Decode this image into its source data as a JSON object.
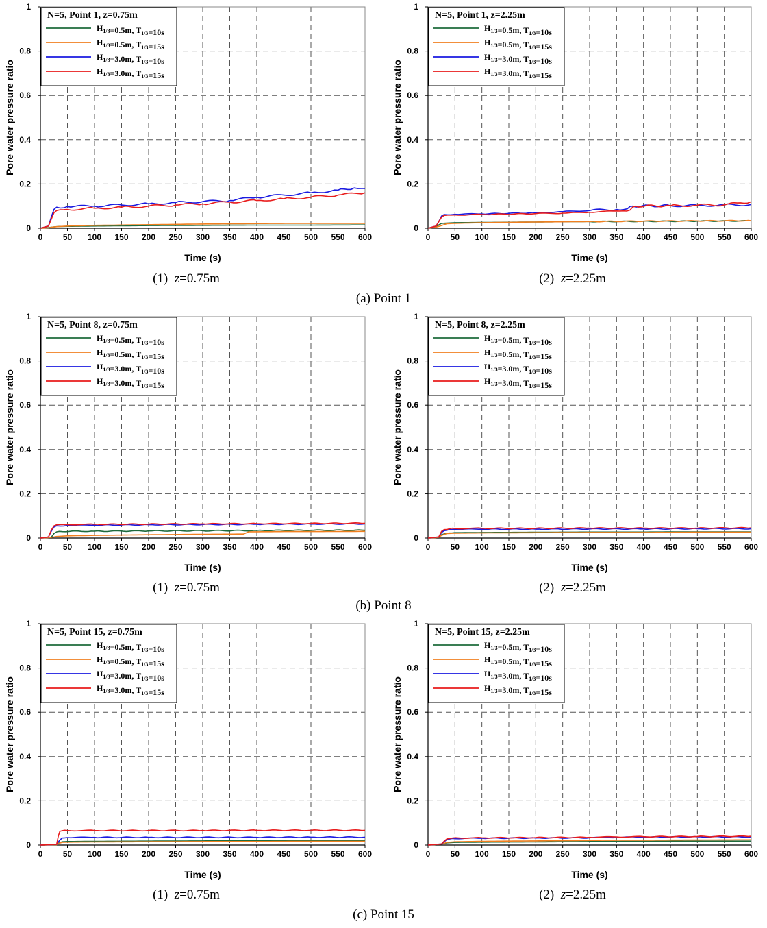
{
  "figure": {
    "row_captions": [
      "(a)  Point  1",
      "(b)  Point  8",
      "(c)  Point  15"
    ],
    "sub_captions": [
      {
        "prefix": "(1)",
        "var": "z",
        "value": "=0.75m"
      },
      {
        "prefix": "(2)",
        "var": "z",
        "value": "=2.25m"
      }
    ]
  },
  "series_styles": [
    {
      "key": "s1",
      "color": "#1e6b3c"
    },
    {
      "key": "s2",
      "color": "#f07f1f"
    },
    {
      "key": "s3",
      "color": "#1a1ae0"
    },
    {
      "key": "s4",
      "color": "#e81c1c"
    }
  ],
  "chart_data": [
    {
      "type": "line",
      "id": "p1_z075",
      "title": "N=5, Point 1, z=0.75m",
      "xlabel": "Time (s)",
      "ylabel": "Pore water pressure ratio",
      "xlim": [
        0,
        600
      ],
      "ylim": [
        0,
        1
      ],
      "xticks": [
        0,
        50,
        100,
        150,
        200,
        250,
        300,
        350,
        400,
        450,
        500,
        550,
        600
      ],
      "yticks": [
        0,
        0.2,
        0.4,
        0.6,
        0.8,
        1
      ],
      "ytick_labels": [
        "0",
        "0.2",
        "0.4",
        "0.6",
        "0.8",
        "1"
      ],
      "grid": true,
      "legend_position": "top-left",
      "series": [
        {
          "name": "H1/3=0.5m, T1/3=10s",
          "H": "0.5m",
          "T": "10s",
          "x": [
            0,
            15,
            25,
            35,
            100,
            200,
            300,
            400,
            500,
            600
          ],
          "y": [
            0,
            0.003,
            0.006,
            0.008,
            0.01,
            0.012,
            0.013,
            0.014,
            0.014,
            0.015
          ]
        },
        {
          "name": "H1/3=0.5m, T1/3=15s",
          "H": "0.5m",
          "T": "15s",
          "x": [
            0,
            15,
            25,
            50,
            100,
            200,
            300,
            400,
            500,
            600
          ],
          "y": [
            0,
            0.002,
            0.006,
            0.01,
            0.013,
            0.016,
            0.019,
            0.021,
            0.022,
            0.022
          ]
        },
        {
          "name": "H1/3=3.0m, T1/3=10s",
          "H": "3.0m",
          "T": "10s",
          "x": [
            0,
            15,
            20,
            25,
            30,
            50,
            100,
            150,
            200,
            250,
            300,
            350,
            400,
            450,
            500,
            550,
            580,
            600
          ],
          "y": [
            0,
            0.01,
            0.05,
            0.085,
            0.095,
            0.098,
            0.1,
            0.105,
            0.11,
            0.116,
            0.12,
            0.125,
            0.14,
            0.15,
            0.16,
            0.172,
            0.182,
            0.18
          ]
        },
        {
          "name": "H1/3=3.0m, T1/3=15s",
          "H": "3.0m",
          "T": "15s",
          "x": [
            0,
            15,
            20,
            25,
            30,
            50,
            100,
            150,
            200,
            250,
            300,
            350,
            400,
            450,
            500,
            550,
            600
          ],
          "y": [
            0,
            0.01,
            0.04,
            0.07,
            0.08,
            0.085,
            0.09,
            0.095,
            0.1,
            0.105,
            0.11,
            0.118,
            0.125,
            0.133,
            0.14,
            0.15,
            0.16
          ]
        }
      ]
    },
    {
      "type": "line",
      "id": "p1_z225",
      "title": "N=5, Point 1, z=2.25m",
      "xlabel": "Time (s)",
      "ylabel": "Pore water pressure ratio",
      "xlim": [
        0,
        600
      ],
      "ylim": [
        0,
        1
      ],
      "xticks": [
        0,
        50,
        100,
        150,
        200,
        250,
        300,
        350,
        400,
        450,
        500,
        550,
        600
      ],
      "yticks": [
        0,
        0.2,
        0.4,
        0.6,
        0.8,
        1
      ],
      "ytick_labels": [
        "0",
        "0.2",
        "0.4",
        "0.6",
        "0.8",
        "1"
      ],
      "grid": true,
      "legend_position": "top-left",
      "series": [
        {
          "name": "H1/3=0.5m, T1/3=10s",
          "H": "0.5m",
          "T": "10s",
          "x": [
            0,
            15,
            20,
            25,
            50,
            100,
            200,
            300,
            400,
            500,
            600
          ],
          "y": [
            0,
            0.005,
            0.015,
            0.022,
            0.025,
            0.026,
            0.028,
            0.03,
            0.031,
            0.032,
            0.033
          ]
        },
        {
          "name": "H1/3=0.5m, T1/3=15s",
          "H": "0.5m",
          "T": "15s",
          "x": [
            0,
            15,
            25,
            35,
            50,
            100,
            200,
            300,
            400,
            500,
            600
          ],
          "y": [
            0,
            0.005,
            0.012,
            0.02,
            0.022,
            0.025,
            0.028,
            0.03,
            0.032,
            0.033,
            0.034
          ]
        },
        {
          "name": "H1/3=3.0m, T1/3=10s",
          "H": "3.0m",
          "T": "10s",
          "x": [
            0,
            15,
            20,
            25,
            30,
            50,
            100,
            200,
            250,
            300,
            350,
            370,
            380,
            450,
            500,
            550,
            600
          ],
          "y": [
            0,
            0.01,
            0.03,
            0.055,
            0.062,
            0.063,
            0.065,
            0.07,
            0.075,
            0.08,
            0.085,
            0.088,
            0.1,
            0.102,
            0.103,
            0.105,
            0.107
          ]
        },
        {
          "name": "H1/3=3.0m, T1/3=15s",
          "H": "3.0m",
          "T": "15s",
          "x": [
            0,
            15,
            20,
            25,
            30,
            50,
            100,
            200,
            250,
            300,
            350,
            375,
            385,
            450,
            500,
            550,
            580,
            600
          ],
          "y": [
            0,
            0.01,
            0.03,
            0.05,
            0.058,
            0.06,
            0.062,
            0.066,
            0.068,
            0.072,
            0.078,
            0.082,
            0.1,
            0.102,
            0.104,
            0.106,
            0.115,
            0.12
          ]
        }
      ]
    },
    {
      "type": "line",
      "id": "p8_z075",
      "title": "N=5, Point 8, z=0.75m",
      "xlabel": "Time (s)",
      "ylabel": "Pore water pressure ratio",
      "xlim": [
        0,
        600
      ],
      "ylim": [
        0,
        1
      ],
      "xticks": [
        0,
        50,
        100,
        150,
        200,
        250,
        300,
        350,
        400,
        450,
        500,
        550,
        600
      ],
      "yticks": [
        0,
        0.2,
        0.4,
        0.6,
        0.8,
        1
      ],
      "ytick_labels": [
        "0",
        "0.2",
        "0.4",
        "0.6",
        "0.8",
        "1"
      ],
      "grid": true,
      "legend_position": "top-left",
      "series": [
        {
          "name": "H1/3=0.5m, T1/3=10s",
          "H": "0.5m",
          "T": "10s",
          "x": [
            0,
            20,
            25,
            30,
            35,
            100,
            200,
            300,
            400,
            500,
            600
          ],
          "y": [
            0,
            0.003,
            0.02,
            0.028,
            0.03,
            0.031,
            0.032,
            0.033,
            0.034,
            0.035,
            0.035
          ]
        },
        {
          "name": "H1/3=0.5m, T1/3=15s",
          "H": "0.5m",
          "T": "15s",
          "x": [
            0,
            20,
            30,
            50,
            100,
            200,
            300,
            375,
            385,
            450,
            500,
            600
          ],
          "y": [
            0,
            0.003,
            0.007,
            0.01,
            0.012,
            0.015,
            0.017,
            0.018,
            0.028,
            0.029,
            0.029,
            0.03
          ]
        },
        {
          "name": "H1/3=3.0m, T1/3=10s",
          "H": "3.0m",
          "T": "10s",
          "x": [
            0,
            15,
            20,
            25,
            30,
            50,
            100,
            200,
            300,
            400,
            500,
            600
          ],
          "y": [
            0,
            0.005,
            0.03,
            0.05,
            0.055,
            0.057,
            0.058,
            0.06,
            0.061,
            0.062,
            0.063,
            0.064
          ]
        },
        {
          "name": "H1/3=3.0m, T1/3=15s",
          "H": "3.0m",
          "T": "15s",
          "x": [
            0,
            15,
            20,
            25,
            30,
            50,
            100,
            200,
            300,
            400,
            500,
            600
          ],
          "y": [
            0,
            0.005,
            0.035,
            0.055,
            0.06,
            0.061,
            0.062,
            0.063,
            0.064,
            0.065,
            0.066,
            0.067
          ]
        }
      ]
    },
    {
      "type": "line",
      "id": "p8_z225",
      "title": "N=5, Point 8, z=2.25m",
      "xlabel": "Time (s)",
      "ylabel": "Pore water pressure ratio",
      "xlim": [
        0,
        600
      ],
      "ylim": [
        0,
        1
      ],
      "xticks": [
        0,
        50,
        100,
        150,
        200,
        250,
        300,
        350,
        400,
        450,
        500,
        550,
        600
      ],
      "yticks": [
        0,
        0.2,
        0.4,
        0.6,
        0.8,
        1
      ],
      "ytick_labels": [
        "0",
        "0.2",
        "0.4",
        "0.6",
        "0.8",
        "1"
      ],
      "grid": true,
      "legend_position": "top-left",
      "series": [
        {
          "name": "H1/3=0.5m, T1/3=10s",
          "H": "0.5m",
          "T": "10s",
          "x": [
            0,
            20,
            25,
            35,
            50,
            100,
            200,
            300,
            400,
            500,
            600
          ],
          "y": [
            0,
            0.003,
            0.015,
            0.022,
            0.024,
            0.025,
            0.026,
            0.027,
            0.027,
            0.028,
            0.028
          ]
        },
        {
          "name": "H1/3=0.5m, T1/3=15s",
          "H": "0.5m",
          "T": "15s",
          "x": [
            0,
            20,
            25,
            35,
            50,
            100,
            200,
            300,
            400,
            500,
            600
          ],
          "y": [
            0,
            0.003,
            0.012,
            0.02,
            0.022,
            0.023,
            0.024,
            0.025,
            0.025,
            0.026,
            0.026
          ]
        },
        {
          "name": "H1/3=3.0m, T1/3=10s",
          "H": "3.0m",
          "T": "10s",
          "x": [
            0,
            20,
            25,
            30,
            40,
            50,
            100,
            200,
            300,
            400,
            500,
            600
          ],
          "y": [
            0,
            0.005,
            0.025,
            0.033,
            0.038,
            0.039,
            0.04,
            0.04,
            0.041,
            0.041,
            0.042,
            0.042
          ]
        },
        {
          "name": "H1/3=3.0m, T1/3=15s",
          "H": "3.0m",
          "T": "15s",
          "x": [
            0,
            20,
            25,
            30,
            40,
            50,
            100,
            200,
            300,
            400,
            500,
            600
          ],
          "y": [
            0,
            0.005,
            0.03,
            0.038,
            0.042,
            0.043,
            0.044,
            0.044,
            0.045,
            0.045,
            0.045,
            0.046
          ]
        }
      ]
    },
    {
      "type": "line",
      "id": "p15_z075",
      "title": "N=5, Point 15, z=0.75m",
      "xlabel": "Time (s)",
      "ylabel": "Pore water pressure ratio",
      "xlim": [
        0,
        600
      ],
      "ylim": [
        0,
        1
      ],
      "xticks": [
        0,
        50,
        100,
        150,
        200,
        250,
        300,
        350,
        400,
        450,
        500,
        550,
        600
      ],
      "yticks": [
        0,
        0.2,
        0.4,
        0.6,
        0.8,
        1
      ],
      "ytick_labels": [
        "0",
        "0.2",
        "0.4",
        "0.6",
        "0.8",
        "1"
      ],
      "grid": true,
      "legend_position": "top-left",
      "series": [
        {
          "name": "H1/3=0.5m, T1/3=10s",
          "H": "0.5m",
          "T": "10s",
          "x": [
            0,
            30,
            35,
            40,
            50,
            100,
            200,
            300,
            400,
            500,
            600
          ],
          "y": [
            0,
            0.002,
            0.01,
            0.015,
            0.016,
            0.017,
            0.018,
            0.019,
            0.02,
            0.02,
            0.021
          ]
        },
        {
          "name": "H1/3=0.5m, T1/3=15s",
          "H": "0.5m",
          "T": "15s",
          "x": [
            0,
            30,
            35,
            40,
            50,
            100,
            200,
            300,
            400,
            500,
            600
          ],
          "y": [
            0,
            0.002,
            0.008,
            0.012,
            0.013,
            0.014,
            0.015,
            0.016,
            0.016,
            0.017,
            0.017
          ]
        },
        {
          "name": "H1/3=3.0m, T1/3=10s",
          "H": "3.0m",
          "T": "10s",
          "x": [
            0,
            30,
            35,
            40,
            50,
            100,
            200,
            300,
            400,
            500,
            600
          ],
          "y": [
            0,
            0.003,
            0.02,
            0.032,
            0.034,
            0.035,
            0.035,
            0.035,
            0.035,
            0.036,
            0.036
          ]
        },
        {
          "name": "H1/3=3.0m, T1/3=15s",
          "H": "3.0m",
          "T": "15s",
          "x": [
            0,
            30,
            33,
            36,
            40,
            50,
            100,
            200,
            300,
            400,
            500,
            600
          ],
          "y": [
            0,
            0.003,
            0.04,
            0.062,
            0.065,
            0.066,
            0.066,
            0.066,
            0.066,
            0.067,
            0.067,
            0.067
          ]
        }
      ]
    },
    {
      "type": "line",
      "id": "p15_z225",
      "title": "N=5, Point 15, z=2.25m",
      "xlabel": "Time (s)",
      "ylabel": "Pore water pressure ratio",
      "xlim": [
        0,
        600
      ],
      "ylim": [
        0,
        1
      ],
      "xticks": [
        0,
        50,
        100,
        150,
        200,
        250,
        300,
        350,
        400,
        450,
        500,
        550,
        600
      ],
      "yticks": [
        0,
        0.2,
        0.4,
        0.6,
        0.8,
        1
      ],
      "ytick_labels": [
        "0",
        "0.2",
        "0.4",
        "0.6",
        "0.8",
        "1"
      ],
      "grid": true,
      "legend_position": "top-left",
      "series": [
        {
          "name": "H1/3=0.5m, T1/3=10s",
          "H": "0.5m",
          "T": "10s",
          "x": [
            0,
            25,
            35,
            50,
            100,
            200,
            300,
            400,
            500,
            600
          ],
          "y": [
            0,
            0.004,
            0.01,
            0.012,
            0.013,
            0.014,
            0.016,
            0.017,
            0.018,
            0.018
          ]
        },
        {
          "name": "H1/3=0.5m, T1/3=15s",
          "H": "0.5m",
          "T": "15s",
          "x": [
            0,
            25,
            35,
            50,
            100,
            200,
            300,
            400,
            500,
            600
          ],
          "y": [
            0,
            0.004,
            0.012,
            0.015,
            0.017,
            0.019,
            0.021,
            0.022,
            0.023,
            0.024
          ]
        },
        {
          "name": "H1/3=3.0m, T1/3=10s",
          "H": "3.0m",
          "T": "10s",
          "x": [
            0,
            25,
            30,
            35,
            45,
            100,
            200,
            300,
            350,
            400,
            500,
            600
          ],
          "y": [
            0,
            0.005,
            0.015,
            0.025,
            0.03,
            0.031,
            0.032,
            0.033,
            0.035,
            0.036,
            0.037,
            0.037
          ]
        },
        {
          "name": "H1/3=3.0m, T1/3=15s",
          "H": "3.0m",
          "T": "15s",
          "x": [
            0,
            25,
            30,
            35,
            45,
            100,
            200,
            300,
            350,
            400,
            500,
            600
          ],
          "y": [
            0,
            0.005,
            0.018,
            0.028,
            0.032,
            0.033,
            0.034,
            0.035,
            0.037,
            0.038,
            0.039,
            0.04
          ]
        }
      ]
    }
  ]
}
